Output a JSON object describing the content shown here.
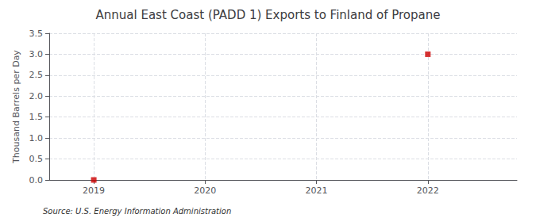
{
  "chart_data": {
    "type": "scatter",
    "title": "Annual East Coast (PADD 1) Exports to Finland of Propane",
    "ylabel": "Thousand Barrels per Day",
    "annotations": [
      "Source: U.S. Energy Information Administration"
    ],
    "x": [
      2019,
      2022
    ],
    "values": [
      0,
      3.0
    ],
    "color": "#cc0000",
    "marker": "square",
    "xlim": [
      2018.6,
      2022.8
    ],
    "xticks": [
      2019,
      2020,
      2021,
      2022
    ],
    "ylim": [
      0,
      3.5
    ],
    "yticks": [
      {
        "value": 0.0,
        "label": "0.0"
      },
      0.5,
      {
        "value": 1.0,
        "label": "1.0"
      },
      1.5,
      {
        "value": 2.0,
        "label": "2.0"
      },
      2.5,
      {
        "value": 3.0,
        "label": "3.0"
      },
      3.5
    ],
    "grid": true
  }
}
